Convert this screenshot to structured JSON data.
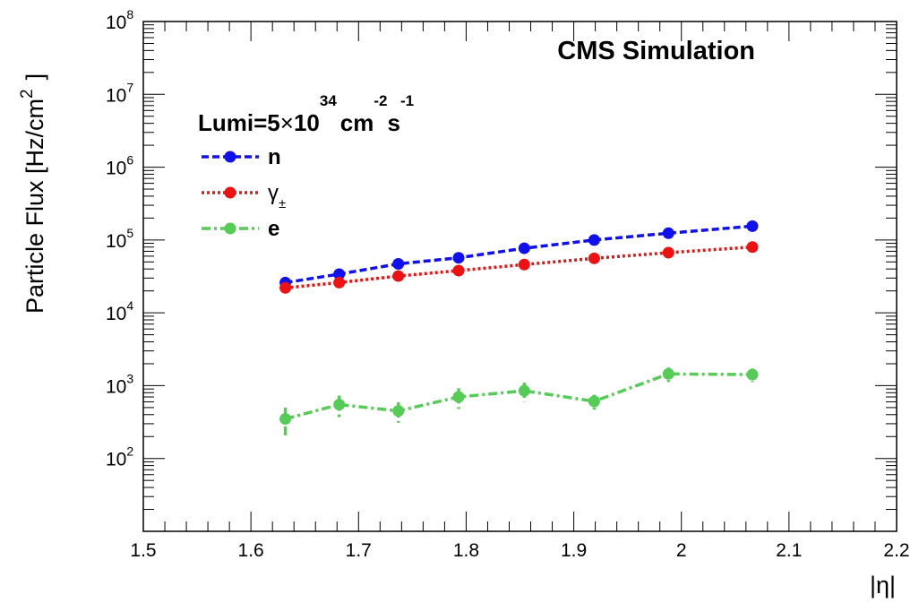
{
  "chart_data": {
    "type": "scatter",
    "annotation": "CMS Simulation",
    "lumi": {
      "prefix": "Lumi=5",
      "times": "×",
      "base": "10",
      "exp": "34",
      "unit1": "cm",
      "unit1_exp": "-2",
      "unit2": "s",
      "unit2_exp": "-1"
    },
    "xlabel": "|η|",
    "ylabel_main": "Particle Flux [Hz/cm",
    "ylabel_sup": "2",
    "ylabel_close": "]",
    "xlim": [
      1.5,
      2.2
    ],
    "ylim_log10": [
      1,
      8
    ],
    "yscale": "log",
    "x_ticks": [
      "1.5",
      "1.6",
      "1.7",
      "1.8",
      "1.9",
      "2",
      "2.1",
      "2.2"
    ],
    "y_ticks": [
      {
        "base": "10",
        "exp": "2",
        "value": 100
      },
      {
        "base": "10",
        "exp": "3",
        "value": 1000
      },
      {
        "base": "10",
        "exp": "4",
        "value": 10000
      },
      {
        "base": "10",
        "exp": "5",
        "value": 100000
      },
      {
        "base": "10",
        "exp": "6",
        "value": 1000000
      },
      {
        "base": "10",
        "exp": "7",
        "value": 10000000
      },
      {
        "base": "10",
        "exp": "8",
        "value": 100000000
      }
    ],
    "legend_position": "top-left",
    "series": [
      {
        "name": "n",
        "color": "#1010ee",
        "line_style": "dashed",
        "x": [
          1.632,
          1.682,
          1.737,
          1.793,
          1.854,
          1.919,
          1.988,
          2.066
        ],
        "y": [
          26000,
          34000,
          47000,
          57000,
          77000,
          100000,
          124000,
          155000
        ],
        "yerr": [
          0,
          0,
          0,
          0,
          0,
          0,
          0,
          0
        ]
      },
      {
        "name": "γ",
        "name_sub": "±",
        "color": "#ee1111",
        "line_style": "dotted",
        "x": [
          1.632,
          1.682,
          1.737,
          1.793,
          1.854,
          1.919,
          1.988,
          2.066
        ],
        "y": [
          22000,
          26000,
          32000,
          38000,
          46000,
          56000,
          67000,
          80000
        ],
        "yerr": [
          0,
          0,
          0,
          0,
          0,
          0,
          0,
          0
        ]
      },
      {
        "name": "e",
        "color": "#55cc55",
        "line_style": "dashdot",
        "x": [
          1.632,
          1.682,
          1.737,
          1.793,
          1.854,
          1.919,
          1.988,
          2.066
        ],
        "y": [
          350,
          550,
          450,
          700,
          850,
          610,
          1450,
          1420
        ],
        "yerr": [
          150,
          180,
          140,
          220,
          250,
          140,
          330,
          300
        ]
      }
    ]
  }
}
